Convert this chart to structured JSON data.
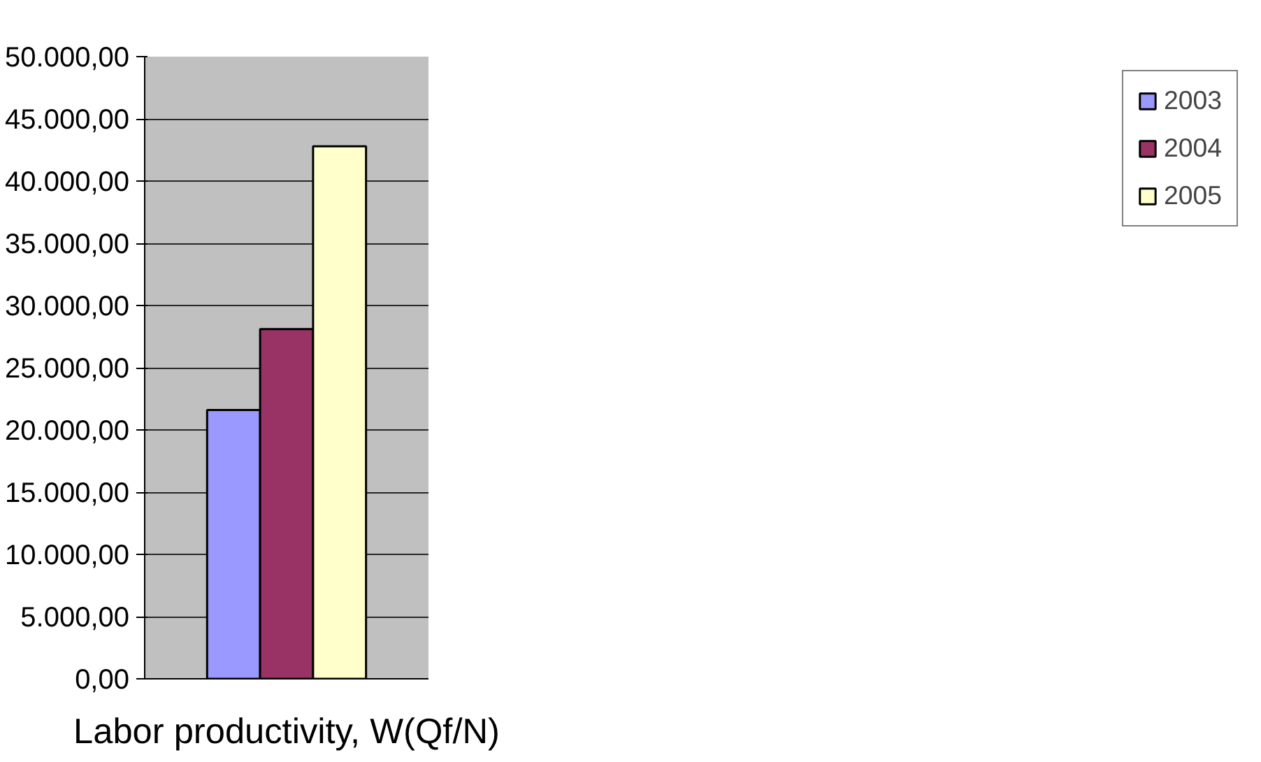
{
  "chart_data": {
    "type": "bar",
    "categories": [
      "Labor productivity, W(Qf/N)"
    ],
    "series": [
      {
        "name": "2003",
        "color": "#9999ff",
        "values": [
          21600
        ]
      },
      {
        "name": "2004",
        "color": "#993366",
        "values": [
          28100
        ]
      },
      {
        "name": "2005",
        "color": "#ffffcc",
        "values": [
          42800
        ]
      }
    ],
    "ylim": [
      0,
      50000
    ],
    "yticks": [
      {
        "value": 0,
        "label": "0,00"
      },
      {
        "value": 5000,
        "label": "5.000,00"
      },
      {
        "value": 10000,
        "label": "10.000,00"
      },
      {
        "value": 15000,
        "label": "15.000,00"
      },
      {
        "value": 20000,
        "label": "20.000,00"
      },
      {
        "value": 25000,
        "label": "25.000,00"
      },
      {
        "value": 30000,
        "label": "30.000,00"
      },
      {
        "value": 35000,
        "label": "35.000,00"
      },
      {
        "value": 40000,
        "label": "40.000,00"
      },
      {
        "value": 45000,
        "label": "45.000,00"
      },
      {
        "value": 50000,
        "label": "50.000,00"
      }
    ],
    "grid": "y",
    "legend": "right"
  }
}
